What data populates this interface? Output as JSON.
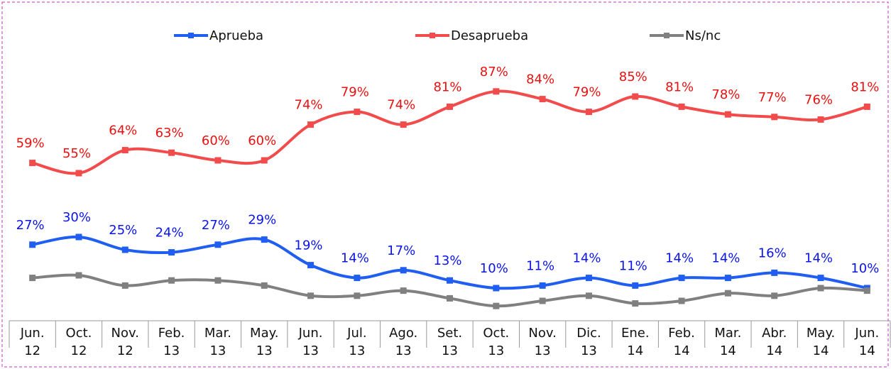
{
  "chart_data": {
    "type": "line",
    "categories": [
      [
        "Jun.",
        "12"
      ],
      [
        "Oct.",
        "12"
      ],
      [
        "Nov.",
        "12"
      ],
      [
        "Feb.",
        "13"
      ],
      [
        "Mar.",
        "13"
      ],
      [
        "May.",
        "13"
      ],
      [
        "Jun.",
        "13"
      ],
      [
        "Jul.",
        "13"
      ],
      [
        "Ago.",
        "13"
      ],
      [
        "Set.",
        "13"
      ],
      [
        "Oct.",
        "13"
      ],
      [
        "Nov.",
        "13"
      ],
      [
        "Dic.",
        "13"
      ],
      [
        "Ene.",
        "14"
      ],
      [
        "Feb.",
        "14"
      ],
      [
        "Mar.",
        "14"
      ],
      [
        "Abr.",
        "14"
      ],
      [
        "May.",
        "14"
      ],
      [
        "Jun.",
        "14"
      ]
    ],
    "series": [
      {
        "name": "Aprueba",
        "color": "#1f5ef0",
        "label_color": "#0a14e6",
        "values": [
          27,
          30,
          25,
          24,
          27,
          29,
          19,
          14,
          17,
          13,
          10,
          11,
          14,
          11,
          14,
          14,
          16,
          14,
          10
        ],
        "value_labels": [
          "27%",
          "30%",
          "25%",
          "24%",
          "27%",
          "29%",
          "19%",
          "14%",
          "17%",
          "13%",
          "10%",
          "11%",
          "14%",
          "11%",
          "14%",
          "14%",
          "16%",
          "14%",
          "10%"
        ]
      },
      {
        "name": "Desaprueba",
        "color": "#f24b4b",
        "label_color": "#e81010",
        "values": [
          59,
          55,
          64,
          63,
          60,
          60,
          74,
          79,
          74,
          81,
          87,
          84,
          79,
          85,
          81,
          78,
          77,
          76,
          81
        ],
        "value_labels": [
          "59%",
          "55%",
          "64%",
          "63%",
          "60%",
          "60%",
          "74%",
          "79%",
          "74%",
          "81%",
          "87%",
          "84%",
          "79%",
          "85%",
          "81%",
          "78%",
          "77%",
          "76%",
          "81%"
        ]
      },
      {
        "name": "Ns/nc",
        "color": "#808080",
        "values": [
          14,
          15,
          11,
          13,
          13,
          11,
          7,
          7,
          9,
          6,
          3,
          5,
          7,
          4,
          5,
          8,
          7,
          10,
          9
        ]
      }
    ],
    "ylim": [
      0,
      100
    ],
    "legend": "top",
    "grid": false
  }
}
